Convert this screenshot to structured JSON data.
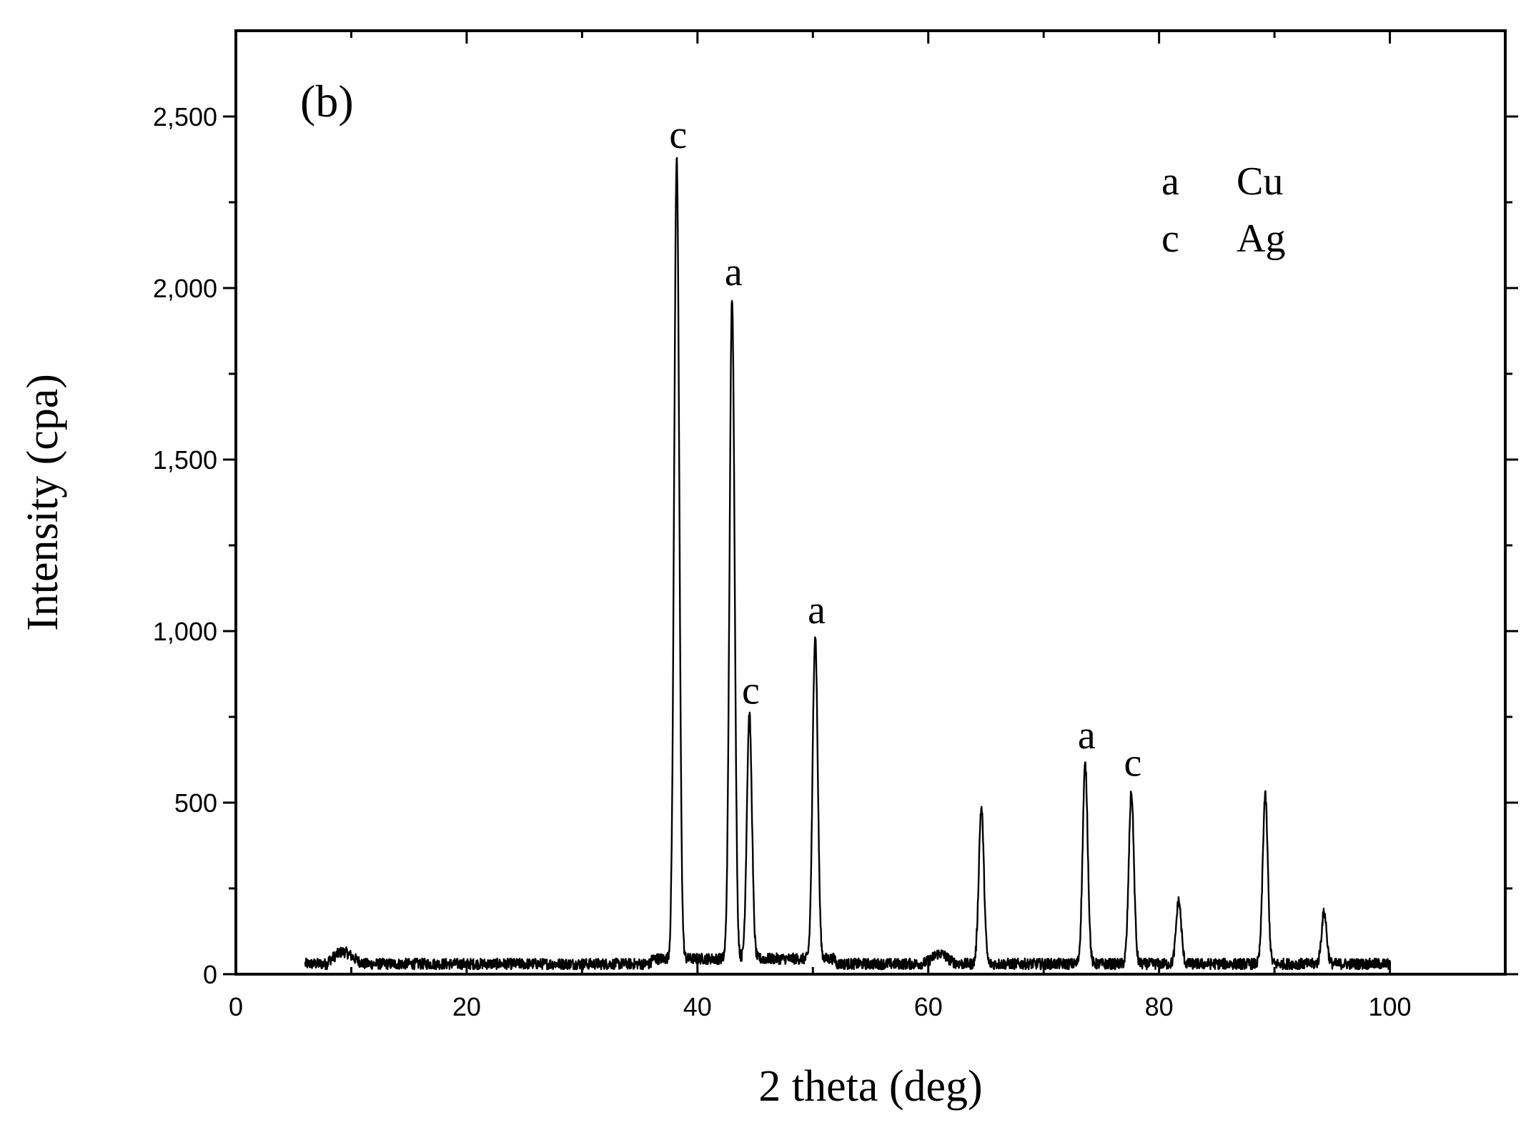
{
  "chart_data": {
    "type": "line",
    "title": "",
    "panel_label": "(b)",
    "xlabel": "2 theta (deg)",
    "ylabel": "Intensity (cpa)",
    "xlim": [
      0,
      110
    ],
    "ylim": [
      0,
      2750
    ],
    "x_ticks": [
      0,
      20,
      40,
      60,
      80,
      100
    ],
    "x_tick_labels": [
      "0",
      "20",
      "40",
      "60",
      "80",
      "100"
    ],
    "y_ticks": [
      0,
      500,
      1000,
      1500,
      2000,
      2500
    ],
    "y_tick_labels": [
      "0",
      "500",
      "1,000",
      "1,500",
      "2,000",
      "2,500"
    ],
    "grid": false,
    "series": [
      {
        "x_range": [
          6,
          100
        ],
        "baseline": 20,
        "peaks": [
          {
            "x": 38.2,
            "y": 2350,
            "label": "c"
          },
          {
            "x": 43.0,
            "y": 1950,
            "label": "a"
          },
          {
            "x": 44.5,
            "y": 730,
            "label": "c"
          },
          {
            "x": 50.2,
            "y": 965,
            "label": "a"
          },
          {
            "x": 64.6,
            "y": 475,
            "label": ""
          },
          {
            "x": 73.6,
            "y": 600,
            "label": "a"
          },
          {
            "x": 77.6,
            "y": 520,
            "label": "c"
          },
          {
            "x": 81.7,
            "y": 205,
            "label": ""
          },
          {
            "x": 89.2,
            "y": 510,
            "label": ""
          },
          {
            "x": 94.3,
            "y": 170,
            "label": ""
          }
        ]
      }
    ],
    "legend": {
      "placement": "top-right",
      "entries": [
        {
          "key": "a",
          "label": "Cu"
        },
        {
          "key": "c",
          "label": "Ag"
        }
      ]
    }
  }
}
